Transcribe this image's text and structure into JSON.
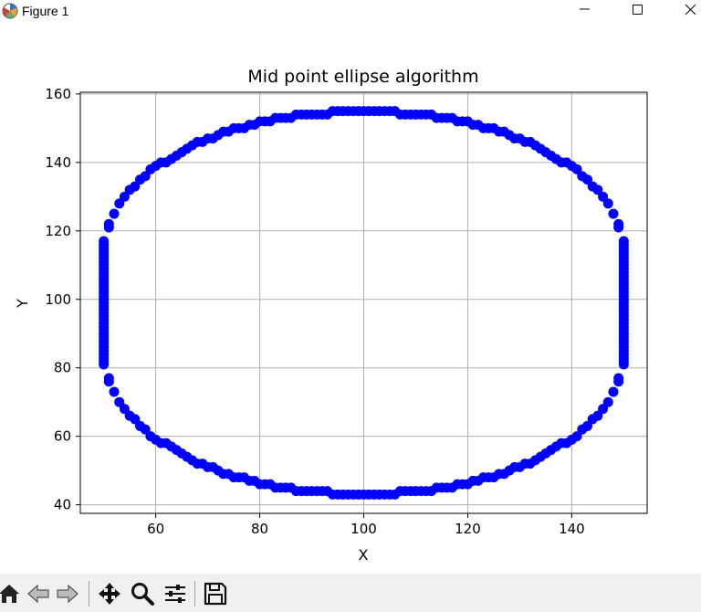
{
  "window": {
    "title": "Figure 1"
  },
  "chart_data": {
    "type": "scatter",
    "title": "Mid point ellipse algorithm",
    "xlabel": "X",
    "ylabel": "Y",
    "xlim": [
      45.5,
      154.5
    ],
    "ylim": [
      37.5,
      160.5
    ],
    "x_ticks": [
      "60",
      "80",
      "100",
      "120",
      "140"
    ],
    "y_ticks": [
      "40",
      "60",
      "80",
      "100",
      "120",
      "140",
      "160"
    ],
    "grid": true,
    "marker": "o",
    "color": "#0000ff",
    "ellipse": {
      "center": [
        100,
        99
      ],
      "rx": 50,
      "ry": 56
    },
    "points": [
      [
        100,
        155
      ],
      [
        101,
        155
      ],
      [
        102,
        155
      ],
      [
        103,
        155
      ],
      [
        104,
        155
      ],
      [
        105,
        155
      ],
      [
        106,
        155
      ],
      [
        107,
        154
      ],
      [
        108,
        154
      ],
      [
        109,
        154
      ],
      [
        110,
        154
      ],
      [
        111,
        154
      ],
      [
        112,
        154
      ],
      [
        113,
        154
      ],
      [
        114,
        153
      ],
      [
        115,
        153
      ],
      [
        116,
        153
      ],
      [
        117,
        153
      ],
      [
        118,
        152
      ],
      [
        119,
        152
      ],
      [
        120,
        152
      ],
      [
        121,
        151
      ],
      [
        122,
        151
      ],
      [
        123,
        150
      ],
      [
        124,
        150
      ],
      [
        125,
        150
      ],
      [
        126,
        149
      ],
      [
        127,
        149
      ],
      [
        128,
        148
      ],
      [
        129,
        147
      ],
      [
        130,
        147
      ],
      [
        131,
        146
      ],
      [
        132,
        146
      ],
      [
        133,
        145
      ],
      [
        134,
        144
      ],
      [
        135,
        143
      ],
      [
        136,
        142
      ],
      [
        137,
        141
      ],
      [
        138,
        140
      ],
      [
        139,
        140
      ],
      [
        140,
        139
      ],
      [
        141,
        138
      ],
      [
        142,
        136
      ],
      [
        143,
        135
      ],
      [
        144,
        133
      ],
      [
        145,
        132
      ],
      [
        146,
        130
      ],
      [
        147,
        128
      ],
      [
        148,
        125
      ],
      [
        149,
        122
      ],
      [
        149,
        121
      ],
      [
        150,
        117
      ],
      [
        150,
        116
      ],
      [
        150,
        115
      ],
      [
        150,
        114
      ],
      [
        150,
        113
      ],
      [
        150,
        112
      ],
      [
        150,
        111
      ],
      [
        150,
        110
      ],
      [
        150,
        109
      ],
      [
        150,
        108
      ],
      [
        150,
        107
      ],
      [
        150,
        106
      ],
      [
        150,
        105
      ],
      [
        150,
        104
      ],
      [
        150,
        103
      ],
      [
        150,
        102
      ],
      [
        150,
        101
      ],
      [
        150,
        100
      ],
      [
        150,
        99
      ],
      [
        150,
        98
      ],
      [
        150,
        97
      ],
      [
        150,
        96
      ],
      [
        150,
        95
      ],
      [
        150,
        94
      ],
      [
        150,
        93
      ],
      [
        150,
        92
      ],
      [
        150,
        91
      ],
      [
        150,
        90
      ],
      [
        150,
        89
      ],
      [
        150,
        88
      ],
      [
        150,
        87
      ],
      [
        150,
        86
      ],
      [
        150,
        85
      ],
      [
        150,
        84
      ],
      [
        150,
        83
      ],
      [
        150,
        82
      ],
      [
        150,
        81
      ],
      [
        149,
        77
      ],
      [
        149,
        76
      ],
      [
        148,
        73
      ],
      [
        147,
        70
      ],
      [
        146,
        68
      ],
      [
        145,
        66
      ],
      [
        144,
        65
      ],
      [
        143,
        63
      ],
      [
        142,
        62
      ],
      [
        141,
        60
      ],
      [
        140,
        59
      ],
      [
        139,
        58
      ],
      [
        138,
        58
      ],
      [
        137,
        57
      ],
      [
        136,
        56
      ],
      [
        135,
        55
      ],
      [
        134,
        54
      ],
      [
        133,
        53
      ],
      [
        132,
        52
      ],
      [
        131,
        52
      ],
      [
        130,
        51
      ],
      [
        129,
        51
      ],
      [
        128,
        50
      ],
      [
        127,
        49
      ],
      [
        126,
        49
      ],
      [
        125,
        48
      ],
      [
        124,
        48
      ],
      [
        123,
        48
      ],
      [
        122,
        47
      ],
      [
        121,
        47
      ],
      [
        120,
        46
      ],
      [
        119,
        46
      ],
      [
        118,
        46
      ],
      [
        117,
        45
      ],
      [
        116,
        45
      ],
      [
        115,
        45
      ],
      [
        114,
        45
      ],
      [
        113,
        44
      ],
      [
        112,
        44
      ],
      [
        111,
        44
      ],
      [
        110,
        44
      ],
      [
        109,
        44
      ],
      [
        108,
        44
      ],
      [
        107,
        44
      ],
      [
        106,
        43
      ],
      [
        105,
        43
      ],
      [
        104,
        43
      ],
      [
        103,
        43
      ],
      [
        102,
        43
      ],
      [
        101,
        43
      ],
      [
        100,
        43
      ],
      [
        99,
        43
      ],
      [
        98,
        43
      ],
      [
        97,
        43
      ],
      [
        96,
        43
      ],
      [
        95,
        43
      ],
      [
        94,
        43
      ],
      [
        93,
        44
      ],
      [
        92,
        44
      ],
      [
        91,
        44
      ],
      [
        90,
        44
      ],
      [
        89,
        44
      ],
      [
        88,
        44
      ],
      [
        87,
        44
      ],
      [
        86,
        45
      ],
      [
        85,
        45
      ],
      [
        84,
        45
      ],
      [
        83,
        45
      ],
      [
        82,
        46
      ],
      [
        81,
        46
      ],
      [
        80,
        46
      ],
      [
        79,
        47
      ],
      [
        78,
        47
      ],
      [
        77,
        48
      ],
      [
        76,
        48
      ],
      [
        75,
        48
      ],
      [
        74,
        49
      ],
      [
        73,
        49
      ],
      [
        72,
        50
      ],
      [
        71,
        51
      ],
      [
        70,
        51
      ],
      [
        69,
        52
      ],
      [
        68,
        52
      ],
      [
        67,
        53
      ],
      [
        66,
        54
      ],
      [
        65,
        55
      ],
      [
        64,
        56
      ],
      [
        63,
        57
      ],
      [
        62,
        58
      ],
      [
        61,
        58
      ],
      [
        60,
        59
      ],
      [
        59,
        60
      ],
      [
        58,
        62
      ],
      [
        57,
        63
      ],
      [
        56,
        65
      ],
      [
        55,
        66
      ],
      [
        54,
        68
      ],
      [
        53,
        70
      ],
      [
        52,
        73
      ],
      [
        51,
        76
      ],
      [
        51,
        77
      ],
      [
        50,
        81
      ],
      [
        50,
        82
      ],
      [
        50,
        83
      ],
      [
        50,
        84
      ],
      [
        50,
        85
      ],
      [
        50,
        86
      ],
      [
        50,
        87
      ],
      [
        50,
        88
      ],
      [
        50,
        89
      ],
      [
        50,
        90
      ],
      [
        50,
        91
      ],
      [
        50,
        92
      ],
      [
        50,
        93
      ],
      [
        50,
        94
      ],
      [
        50,
        95
      ],
      [
        50,
        96
      ],
      [
        50,
        97
      ],
      [
        50,
        98
      ],
      [
        50,
        99
      ],
      [
        50,
        100
      ],
      [
        50,
        101
      ],
      [
        50,
        102
      ],
      [
        50,
        103
      ],
      [
        50,
        104
      ],
      [
        50,
        105
      ],
      [
        50,
        106
      ],
      [
        50,
        107
      ],
      [
        50,
        108
      ],
      [
        50,
        109
      ],
      [
        50,
        110
      ],
      [
        50,
        111
      ],
      [
        50,
        112
      ],
      [
        50,
        113
      ],
      [
        50,
        114
      ],
      [
        50,
        115
      ],
      [
        50,
        116
      ],
      [
        50,
        117
      ],
      [
        51,
        121
      ],
      [
        51,
        122
      ],
      [
        52,
        125
      ],
      [
        53,
        128
      ],
      [
        54,
        130
      ],
      [
        55,
        132
      ],
      [
        56,
        133
      ],
      [
        57,
        135
      ],
      [
        58,
        136
      ],
      [
        59,
        138
      ],
      [
        60,
        139
      ],
      [
        61,
        140
      ],
      [
        62,
        140
      ],
      [
        63,
        141
      ],
      [
        64,
        142
      ],
      [
        65,
        143
      ],
      [
        66,
        144
      ],
      [
        67,
        145
      ],
      [
        68,
        146
      ],
      [
        69,
        146
      ],
      [
        70,
        147
      ],
      [
        71,
        147
      ],
      [
        72,
        148
      ],
      [
        73,
        149
      ],
      [
        74,
        149
      ],
      [
        75,
        150
      ],
      [
        76,
        150
      ],
      [
        77,
        150
      ],
      [
        78,
        151
      ],
      [
        79,
        151
      ],
      [
        80,
        152
      ],
      [
        81,
        152
      ],
      [
        82,
        152
      ],
      [
        83,
        153
      ],
      [
        84,
        153
      ],
      [
        85,
        153
      ],
      [
        86,
        153
      ],
      [
        87,
        154
      ],
      [
        88,
        154
      ],
      [
        89,
        154
      ],
      [
        90,
        154
      ],
      [
        91,
        154
      ],
      [
        92,
        154
      ],
      [
        93,
        154
      ],
      [
        94,
        155
      ],
      [
        95,
        155
      ],
      [
        96,
        155
      ],
      [
        97,
        155
      ],
      [
        98,
        155
      ],
      [
        99,
        155
      ]
    ]
  },
  "toolbar": {
    "buttons": [
      {
        "name": "home-button",
        "icon": "home-icon"
      },
      {
        "name": "back-button",
        "icon": "back-arrow-icon"
      },
      {
        "name": "forward-button",
        "icon": "forward-arrow-icon"
      },
      {
        "name": "pan-button",
        "icon": "pan-move-icon"
      },
      {
        "name": "zoom-button",
        "icon": "zoom-magnifier-icon"
      },
      {
        "name": "configure-subplots-button",
        "icon": "sliders-icon"
      },
      {
        "name": "save-button",
        "icon": "floppy-disk-icon"
      }
    ]
  }
}
